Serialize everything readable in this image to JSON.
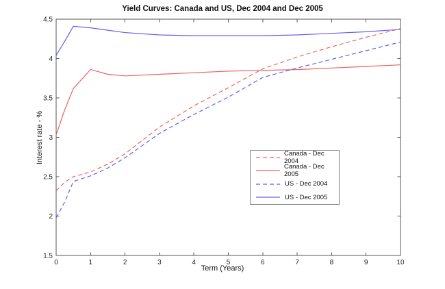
{
  "chart_data": {
    "type": "line",
    "title": "Yield Curves: Canada and US, Dec 2004 and Dec 2005",
    "xlabel": "Term (Years)",
    "ylabel": "Interest rate - %",
    "xlim": [
      0,
      10
    ],
    "ylim": [
      1.5,
      4.5
    ],
    "xticks": [
      0,
      1,
      2,
      3,
      4,
      5,
      6,
      7,
      8,
      9,
      10
    ],
    "yticks": [
      1.5,
      2,
      2.5,
      3,
      3.5,
      4,
      4.5
    ],
    "grid": false,
    "legend_position": "inside-center-right",
    "x": [
      0,
      0.25,
      0.5,
      1,
      1.5,
      2,
      3,
      4,
      5,
      6,
      7,
      8,
      9,
      10
    ],
    "series": [
      {
        "name": "Canada - Dec 2004",
        "color": "#ec6262",
        "style": "dashed",
        "values": [
          2.32,
          2.43,
          2.5,
          2.56,
          2.66,
          2.79,
          3.13,
          3.4,
          3.63,
          3.87,
          4.02,
          4.15,
          4.27,
          4.38
        ]
      },
      {
        "name": "Canada - Dec 2005",
        "color": "#ec6262",
        "style": "solid",
        "values": [
          3.03,
          3.35,
          3.62,
          3.86,
          3.8,
          3.78,
          3.8,
          3.82,
          3.84,
          3.85,
          3.86,
          3.88,
          3.9,
          3.92
        ]
      },
      {
        "name": "US - Dec 2004",
        "color": "#6060ec",
        "style": "dashed",
        "values": [
          1.98,
          2.18,
          2.44,
          2.51,
          2.61,
          2.74,
          3.05,
          3.29,
          3.51,
          3.76,
          3.88,
          3.99,
          4.1,
          4.21
        ]
      },
      {
        "name": "US - Dec 2005",
        "color": "#6060ec",
        "style": "solid",
        "values": [
          4.04,
          4.22,
          4.41,
          4.39,
          4.36,
          4.33,
          4.3,
          4.29,
          4.29,
          4.29,
          4.3,
          4.32,
          4.34,
          4.37
        ]
      }
    ],
    "axis_color": "#555555",
    "text_color": "#1a1a1a"
  }
}
